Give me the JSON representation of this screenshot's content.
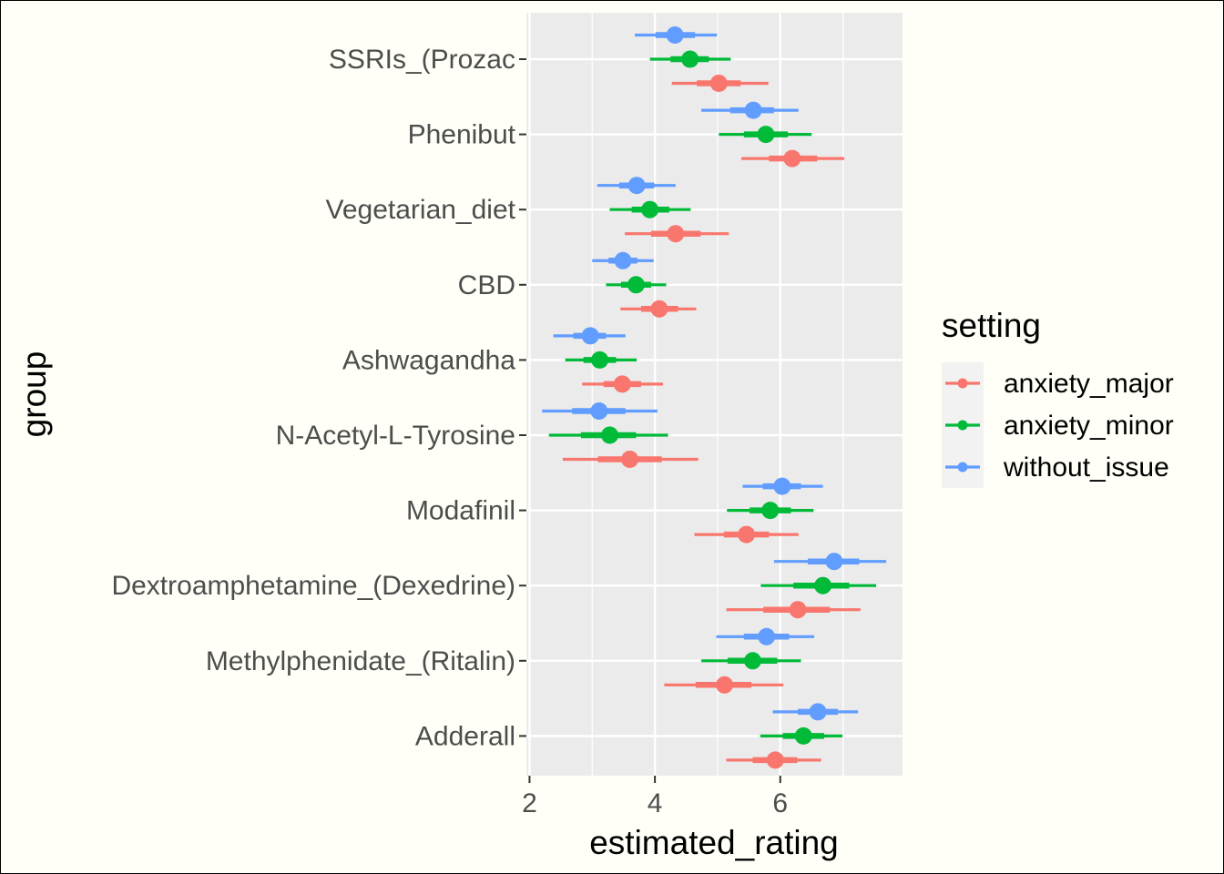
{
  "chart_data": {
    "type": "pointrange",
    "xlabel": "estimated_rating",
    "ylabel": "group",
    "xlim": [
      1.95,
      7.95
    ],
    "xticks": [
      2,
      4,
      6
    ],
    "grid": true,
    "legend": {
      "title": "setting",
      "placement": "right",
      "entries": [
        {
          "name": "anxiety_major",
          "color": "#F8766D"
        },
        {
          "name": "anxiety_minor",
          "color": "#00BA38"
        },
        {
          "name": "without_issue",
          "color": "#619CFF"
        }
      ]
    },
    "categories": [
      "SSRIs_(Prozac",
      "Phenibut",
      "Vegetarian_diet",
      "CBD",
      "Ashwagandha",
      "N-Acetyl-L-Tyrosine",
      "Modafinil",
      "Dextroamphetamine_(Dexedrine)",
      "Methylphenidate_(Ritalin)",
      "Adderall"
    ],
    "series": [
      {
        "name": "anxiety_major",
        "color": "#F8766D",
        "values": [
          {
            "estimate": 5.02,
            "inner": [
              4.67,
              5.37
            ],
            "outer": [
              4.27,
              5.81
            ]
          },
          {
            "estimate": 6.19,
            "inner": [
              5.82,
              6.59
            ],
            "outer": [
              5.38,
              7.02
            ]
          },
          {
            "estimate": 4.33,
            "inner": [
              3.94,
              4.73
            ],
            "outer": [
              3.52,
              5.18
            ]
          },
          {
            "estimate": 4.07,
            "inner": [
              3.78,
              4.37
            ],
            "outer": [
              3.45,
              4.66
            ]
          },
          {
            "estimate": 3.48,
            "inner": [
              3.18,
              3.78
            ],
            "outer": [
              2.84,
              4.13
            ]
          },
          {
            "estimate": 3.6,
            "inner": [
              3.09,
              4.11
            ],
            "outer": [
              2.53,
              4.69
            ]
          },
          {
            "estimate": 5.46,
            "inner": [
              5.1,
              5.82
            ],
            "outer": [
              4.63,
              6.29
            ]
          },
          {
            "estimate": 6.28,
            "inner": [
              5.73,
              6.79
            ],
            "outer": [
              5.14,
              7.28
            ]
          },
          {
            "estimate": 5.11,
            "inner": [
              4.65,
              5.54
            ],
            "outer": [
              4.15,
              6.05
            ]
          },
          {
            "estimate": 5.92,
            "inner": [
              5.56,
              6.27
            ],
            "outer": [
              5.14,
              6.65
            ]
          }
        ]
      },
      {
        "name": "anxiety_minor",
        "color": "#00BA38",
        "values": [
          {
            "estimate": 4.56,
            "inner": [
              4.25,
              4.86
            ],
            "outer": [
              3.92,
              5.21
            ]
          },
          {
            "estimate": 5.77,
            "inner": [
              5.42,
              6.12
            ],
            "outer": [
              5.02,
              6.5
            ]
          },
          {
            "estimate": 3.92,
            "inner": [
              3.63,
              4.23
            ],
            "outer": [
              3.28,
              4.57
            ]
          },
          {
            "estimate": 3.7,
            "inner": [
              3.46,
              3.94
            ],
            "outer": [
              3.22,
              4.18
            ]
          },
          {
            "estimate": 3.12,
            "inner": [
              2.86,
              3.38
            ],
            "outer": [
              2.57,
              3.71
            ]
          },
          {
            "estimate": 3.28,
            "inner": [
              2.82,
              3.7
            ],
            "outer": [
              2.31,
              4.21
            ]
          },
          {
            "estimate": 5.84,
            "inner": [
              5.51,
              6.17
            ],
            "outer": [
              5.15,
              6.53
            ]
          },
          {
            "estimate": 6.68,
            "inner": [
              6.21,
              7.1
            ],
            "outer": [
              5.69,
              7.53
            ]
          },
          {
            "estimate": 5.56,
            "inner": [
              5.16,
              5.95
            ],
            "outer": [
              4.74,
              6.33
            ]
          },
          {
            "estimate": 6.37,
            "inner": [
              6.04,
              6.7
            ],
            "outer": [
              5.68,
              6.99
            ]
          }
        ]
      },
      {
        "name": "without_issue",
        "color": "#619CFF",
        "values": [
          {
            "estimate": 4.32,
            "inner": [
              4.01,
              4.64
            ],
            "outer": [
              3.68,
              4.99
            ]
          },
          {
            "estimate": 5.57,
            "inner": [
              5.2,
              5.9
            ],
            "outer": [
              4.74,
              6.29
            ]
          },
          {
            "estimate": 3.71,
            "inner": [
              3.43,
              3.99
            ],
            "outer": [
              3.08,
              4.33
            ]
          },
          {
            "estimate": 3.49,
            "inner": [
              3.26,
              3.72
            ],
            "outer": [
              3.0,
              3.98
            ]
          },
          {
            "estimate": 2.97,
            "inner": [
              2.7,
              3.22
            ],
            "outer": [
              2.38,
              3.53
            ]
          },
          {
            "estimate": 3.11,
            "inner": [
              2.68,
              3.53
            ],
            "outer": [
              2.2,
              4.04
            ]
          },
          {
            "estimate": 6.03,
            "inner": [
              5.72,
              6.33
            ],
            "outer": [
              5.4,
              6.68
            ]
          },
          {
            "estimate": 6.86,
            "inner": [
              6.44,
              7.26
            ],
            "outer": [
              5.9,
              7.69
            ]
          },
          {
            "estimate": 5.78,
            "inner": [
              5.42,
              6.14
            ],
            "outer": [
              4.98,
              6.54
            ]
          },
          {
            "estimate": 6.6,
            "inner": [
              6.28,
              6.92
            ],
            "outer": [
              5.88,
              7.24
            ]
          }
        ]
      }
    ]
  }
}
